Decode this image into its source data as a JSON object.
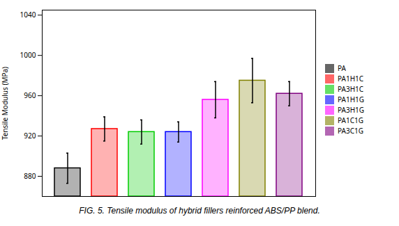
{
  "chart_data": {
    "type": "bar",
    "categories": [
      "PA",
      "PA1H1C",
      "PA3H1C",
      "PA1H1G",
      "PA3H1G",
      "PA1C1G",
      "PA3C1G"
    ],
    "values": [
      888,
      927,
      924,
      924,
      956,
      975,
      962
    ],
    "errors": [
      15,
      12,
      12,
      10,
      18,
      22,
      12
    ],
    "colors": [
      "black",
      "red",
      "#00cc00",
      "blue",
      "magenta",
      "#808000",
      "#800080"
    ],
    "ylabel": "Tensile Modulus (MPa)",
    "ylim": [
      860,
      1045
    ],
    "yticks": [
      880,
      920,
      960,
      1000,
      1040
    ],
    "legend": "right",
    "tick_labels": "y",
    "caption": "FIG. 5. Tensile modulus of hybrid fillers reinforced ABS/PP blend."
  }
}
